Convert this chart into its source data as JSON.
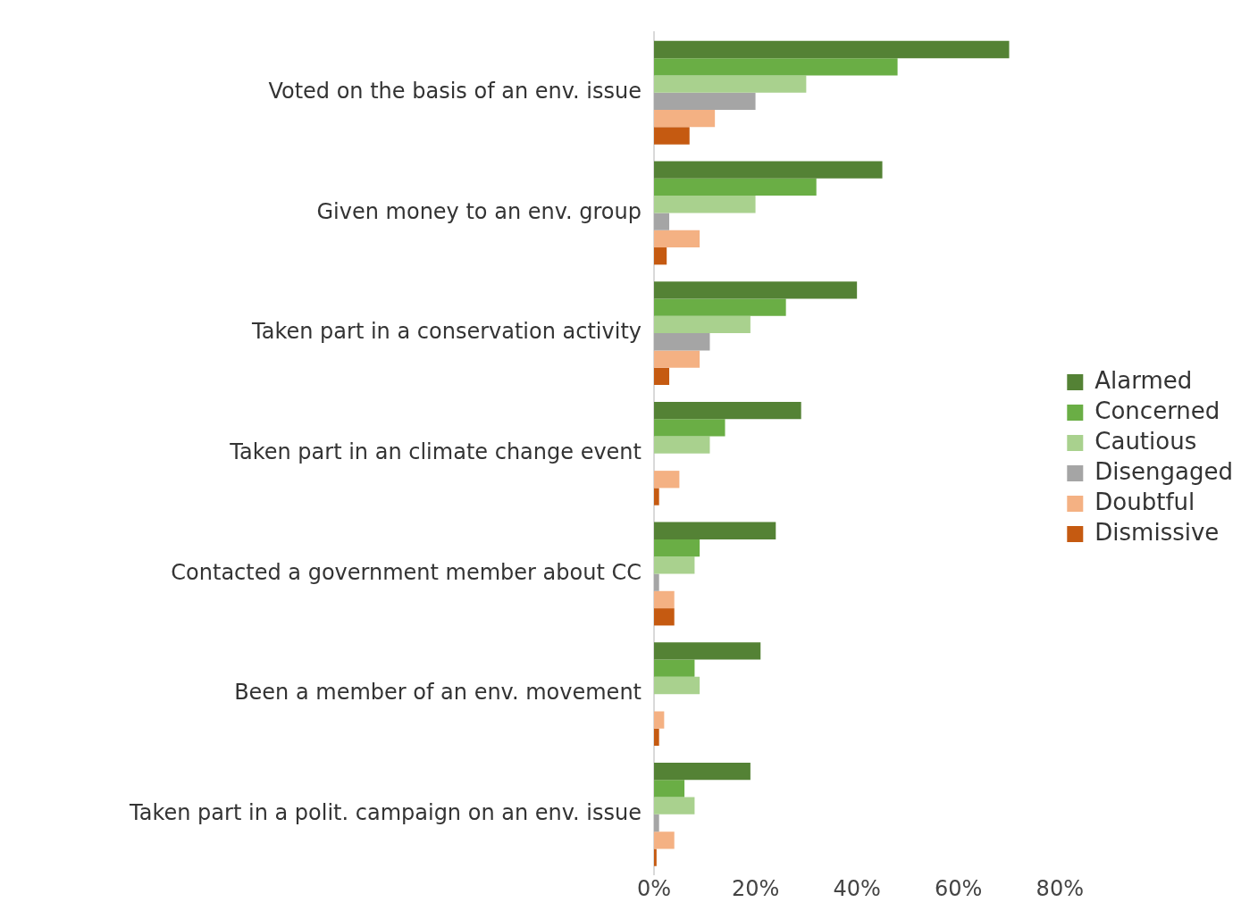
{
  "chart_data": {
    "type": "bar",
    "orientation": "horizontal",
    "categories": [
      "Voted on the basis of an env. issue",
      "Given money to an env. group",
      "Taken part in a conservation activity",
      "Taken part in an climate change event",
      "Contacted a government member about CC",
      "Been a member of an env. movement",
      "Taken part in a polit. campaign on an env. issue"
    ],
    "series": [
      {
        "name": "Alarmed",
        "color": "#548235",
        "values": [
          70,
          45,
          40,
          29,
          24,
          21,
          19
        ]
      },
      {
        "name": "Concerned",
        "color": "#6aae45",
        "values": [
          48,
          32,
          26,
          14,
          9,
          8,
          6
        ]
      },
      {
        "name": "Cautious",
        "color": "#a9d18e",
        "values": [
          30,
          20,
          19,
          11,
          8,
          9,
          8
        ]
      },
      {
        "name": "Disengaged",
        "color": "#a5a5a5",
        "values": [
          20,
          3,
          11,
          0,
          1,
          0,
          1
        ]
      },
      {
        "name": "Doubtful",
        "color": "#f4b183",
        "values": [
          12,
          9,
          9,
          5,
          4,
          2,
          4
        ]
      },
      {
        "name": "Dismissive",
        "color": "#c55a11",
        "values": [
          7,
          2.5,
          3,
          1,
          4,
          1,
          0.5
        ]
      }
    ],
    "xlim": [
      0,
      80
    ],
    "xticks": [
      {
        "value": 0,
        "label": "0%"
      },
      {
        "value": 20,
        "label": "20%"
      },
      {
        "value": 40,
        "label": "40%"
      },
      {
        "value": 60,
        "label": "60%"
      },
      {
        "value": 80,
        "label": "80%"
      }
    ],
    "grid": false,
    "legend": "right"
  }
}
